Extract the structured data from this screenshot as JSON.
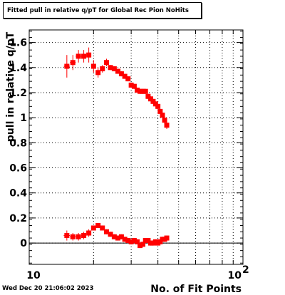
{
  "title": "Fitted pull in relative q/pT for Global Rec Pion NoHits",
  "footer_date": "Wed Dec 20 21:06:02 2023",
  "chart_data": {
    "type": "scatter",
    "title": "Fitted pull in relative q/pT for Global Rec Pion NoHits",
    "xlabel": "No. of Fit Points",
    "ylabel": "pull in relative q/pT",
    "x_scale": "log",
    "xlim": [
      10,
      100
    ],
    "ylim": [
      -0.17,
      1.7
    ],
    "x_tick_labels": [
      "10",
      "10^2"
    ],
    "y_ticks": [
      0,
      0.2,
      0.4,
      0.6,
      0.8,
      1,
      1.2,
      1.4,
      1.6
    ],
    "y_tick_labels": [
      "0",
      "0.2",
      "0.4",
      "0.6",
      "0.8",
      "1",
      "1.2",
      "1.4",
      "1.6"
    ],
    "grid": true,
    "marker_color": "#ff0000",
    "series": [
      {
        "points": [
          {
            "x": 15,
            "y": 1.41,
            "err": 0.09
          },
          {
            "x": 16,
            "y": 1.44,
            "err": 0.06
          },
          {
            "x": 17,
            "y": 1.49,
            "err": 0.05
          },
          {
            "x": 18,
            "y": 1.49,
            "err": 0.05
          },
          {
            "x": 19,
            "y": 1.5,
            "err": 0.06
          },
          {
            "x": 20,
            "y": 1.41,
            "err": 0.05
          },
          {
            "x": 21,
            "y": 1.36,
            "err": 0.04
          },
          {
            "x": 22,
            "y": 1.39,
            "err": 0.03
          },
          {
            "x": 23,
            "y": 1.44,
            "err": 0.03
          },
          {
            "x": 24,
            "y": 1.4,
            "err": 0.02
          },
          {
            "x": 25,
            "y": 1.39,
            "err": 0.02
          },
          {
            "x": 26,
            "y": 1.37,
            "err": 0.02
          },
          {
            "x": 27,
            "y": 1.35,
            "err": 0.02
          },
          {
            "x": 28,
            "y": 1.33,
            "err": 0.02
          },
          {
            "x": 29,
            "y": 1.31,
            "err": 0.02
          },
          {
            "x": 30,
            "y": 1.26,
            "err": 0.02
          },
          {
            "x": 31,
            "y": 1.25,
            "err": 0.02
          },
          {
            "x": 32,
            "y": 1.22,
            "err": 0.02
          },
          {
            "x": 33,
            "y": 1.21,
            "err": 0.02
          },
          {
            "x": 34,
            "y": 1.21,
            "err": 0.02
          },
          {
            "x": 35,
            "y": 1.21,
            "err": 0.02
          },
          {
            "x": 36,
            "y": 1.17,
            "err": 0.02
          },
          {
            "x": 37,
            "y": 1.15,
            "err": 0.02
          },
          {
            "x": 38,
            "y": 1.13,
            "err": 0.02
          },
          {
            "x": 39,
            "y": 1.11,
            "err": 0.02
          },
          {
            "x": 40,
            "y": 1.09,
            "err": 0.02
          },
          {
            "x": 41,
            "y": 1.05,
            "err": 0.02
          },
          {
            "x": 42,
            "y": 1.02,
            "err": 0.02
          },
          {
            "x": 43,
            "y": 0.98,
            "err": 0.03
          },
          {
            "x": 44,
            "y": 0.94,
            "err": 0.03
          }
        ]
      },
      {
        "points": [
          {
            "x": 15,
            "y": 0.06,
            "err": 0.04
          },
          {
            "x": 16,
            "y": 0.05,
            "err": 0.03
          },
          {
            "x": 17,
            "y": 0.05,
            "err": 0.03
          },
          {
            "x": 18,
            "y": 0.06,
            "err": 0.03
          },
          {
            "x": 19,
            "y": 0.08,
            "err": 0.03
          },
          {
            "x": 20,
            "y": 0.12,
            "err": 0.02
          },
          {
            "x": 21,
            "y": 0.14,
            "err": 0.02
          },
          {
            "x": 22,
            "y": 0.12,
            "err": 0.02
          },
          {
            "x": 23,
            "y": 0.09,
            "err": 0.02
          },
          {
            "x": 24,
            "y": 0.07,
            "err": 0.02
          },
          {
            "x": 25,
            "y": 0.05,
            "err": 0.02
          },
          {
            "x": 26,
            "y": 0.04,
            "err": 0.02
          },
          {
            "x": 27,
            "y": 0.05,
            "err": 0.02
          },
          {
            "x": 28,
            "y": 0.03,
            "err": 0.02
          },
          {
            "x": 29,
            "y": 0.02,
            "err": 0.02
          },
          {
            "x": 30,
            "y": 0.01,
            "err": 0.02
          },
          {
            "x": 31,
            "y": 0.02,
            "err": 0.02
          },
          {
            "x": 32,
            "y": 0.01,
            "err": 0.02
          },
          {
            "x": 33,
            "y": -0.02,
            "err": 0.02
          },
          {
            "x": 34,
            "y": -0.01,
            "err": 0.02
          },
          {
            "x": 35,
            "y": 0.02,
            "err": 0.02
          },
          {
            "x": 36,
            "y": 0.02,
            "err": 0.02
          },
          {
            "x": 37,
            "y": 0.0,
            "err": 0.02
          },
          {
            "x": 38,
            "y": 0.0,
            "err": 0.02
          },
          {
            "x": 39,
            "y": 0.01,
            "err": 0.02
          },
          {
            "x": 40,
            "y": 0.0,
            "err": 0.02
          },
          {
            "x": 41,
            "y": 0.01,
            "err": 0.02
          },
          {
            "x": 42,
            "y": 0.03,
            "err": 0.02
          },
          {
            "x": 43,
            "y": 0.03,
            "err": 0.02
          },
          {
            "x": 44,
            "y": 0.04,
            "err": 0.02
          }
        ]
      }
    ]
  }
}
